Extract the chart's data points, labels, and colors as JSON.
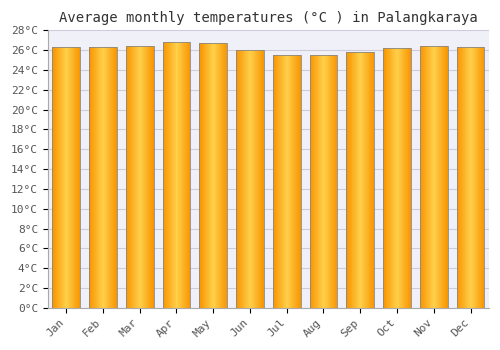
{
  "title": "Average monthly temperatures (°C ) in Palangkaraya",
  "months": [
    "Jan",
    "Feb",
    "Mar",
    "Apr",
    "May",
    "Jun",
    "Jul",
    "Aug",
    "Sep",
    "Oct",
    "Nov",
    "Dec"
  ],
  "values": [
    26.3,
    26.3,
    26.4,
    26.8,
    26.7,
    26.0,
    25.5,
    25.5,
    25.8,
    26.2,
    26.4,
    26.3
  ],
  "bar_color_center": "#FFD04A",
  "bar_color_edge": "#F89400",
  "bar_border_color": "#888888",
  "background_color": "#ffffff",
  "plot_bg_color": "#f0f0f8",
  "grid_color": "#ccccdd",
  "ylim": [
    0,
    28
  ],
  "ytick_step": 2,
  "title_fontsize": 10,
  "tick_fontsize": 8,
  "font_family": "monospace",
  "bar_width": 0.75
}
